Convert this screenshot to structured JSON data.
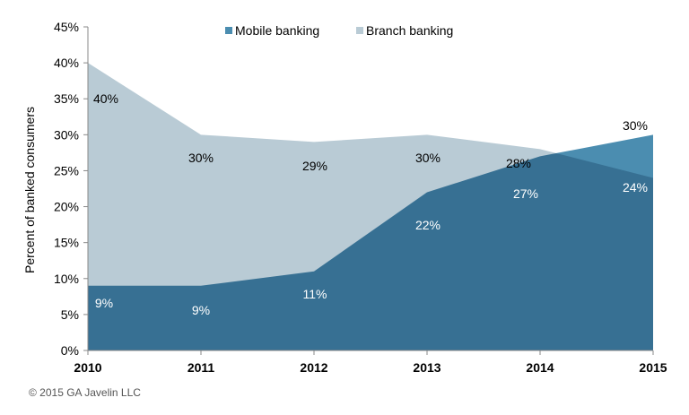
{
  "chart_data": {
    "type": "area",
    "title": "",
    "xlabel": "",
    "ylabel": "Percent of banked consumers",
    "categories": [
      "2010",
      "2011",
      "2012",
      "2013",
      "2014",
      "2015"
    ],
    "ylim": [
      0,
      45
    ],
    "yticks": [
      "0%",
      "5%",
      "10%",
      "15%",
      "20%",
      "25%",
      "30%",
      "35%",
      "40%",
      "45%"
    ],
    "grid": false,
    "legend_position": "top",
    "series": [
      {
        "name": "Mobile banking",
        "values": [
          9,
          9,
          11,
          22,
          27,
          30
        ],
        "labels": [
          "9%",
          "9%",
          "11%",
          "22%",
          "27%",
          "30%"
        ],
        "color": "#4b8db0"
      },
      {
        "name": "Branch banking",
        "values": [
          40,
          30,
          29,
          30,
          28,
          24
        ],
        "labels": [
          "40%",
          "30%",
          "29%",
          "30%",
          "28%",
          "24%"
        ],
        "color": "#b9cbd5"
      }
    ]
  },
  "footer": "© 2015 GA Javelin LLC"
}
